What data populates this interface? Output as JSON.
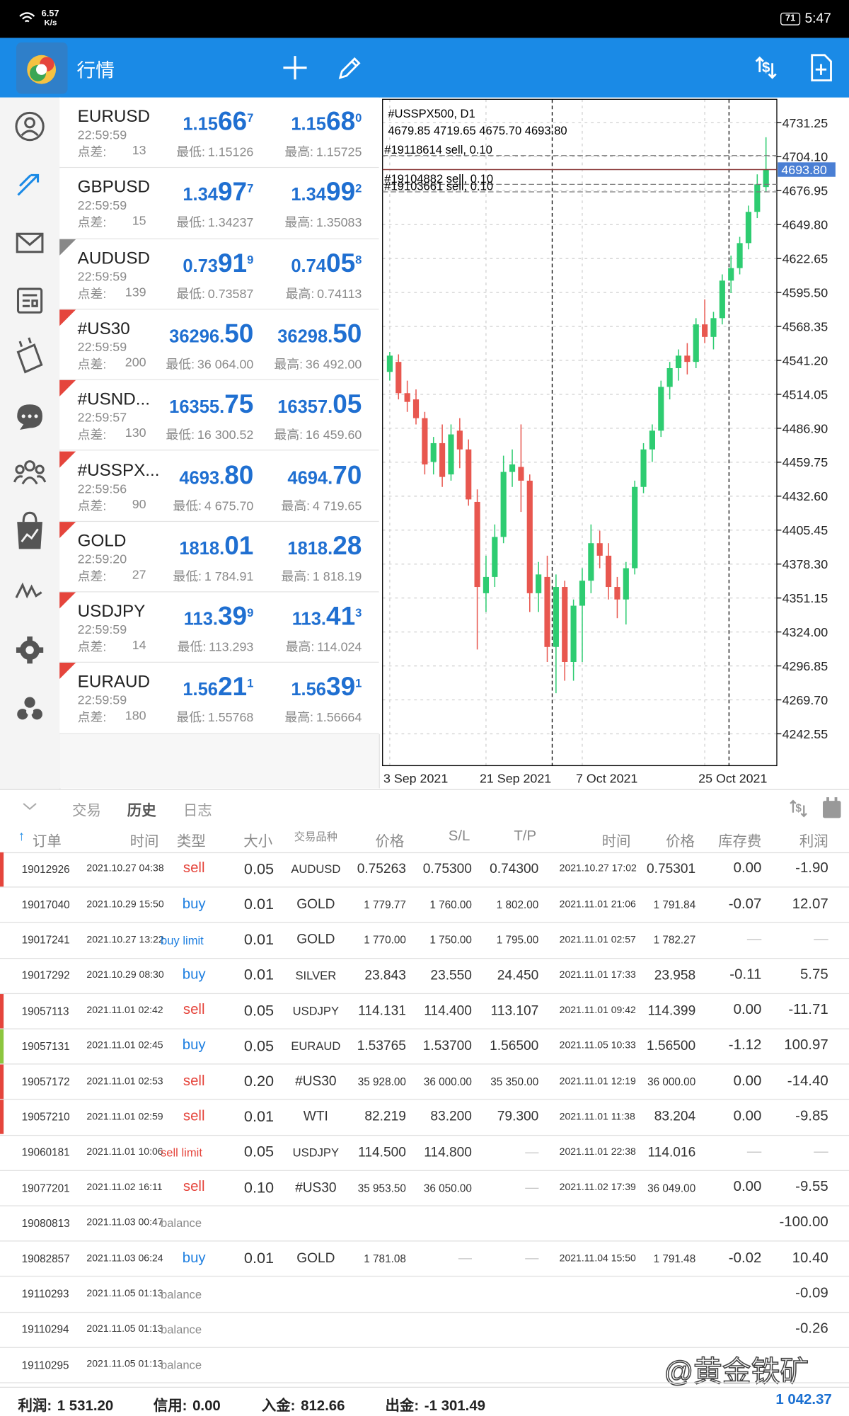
{
  "status_bar": {
    "speed": "6.57",
    "speed_unit": "K/s",
    "battery": "71",
    "time": "5:47"
  },
  "app_bar": {
    "title": "行情"
  },
  "quotes": {
    "rows": [
      {
        "symbol": "EURUSD",
        "time": "22:59:59",
        "spread_label": "点差:",
        "spread": 13,
        "bid": "1.15667",
        "ask": "1.15680",
        "low_label": "最低:",
        "low": "1.15126",
        "high_label": "最高:",
        "high": "1.15725",
        "flag": null
      },
      {
        "symbol": "GBPUSD",
        "time": "22:59:59",
        "spread_label": "点差:",
        "spread": 15,
        "bid": "1.34977",
        "ask": "1.34992",
        "low_label": "最低:",
        "low": "1.34237",
        "high_label": "最高:",
        "high": "1.35083",
        "flag": null
      },
      {
        "symbol": "AUDUSD",
        "time": "22:59:59",
        "spread_label": "点差:",
        "spread": 139,
        "bid": "0.73919",
        "ask": "0.74058",
        "low_label": "最低:",
        "low": "0.73587",
        "high_label": "最高:",
        "high": "0.74113",
        "flag": "#888888"
      },
      {
        "symbol": "#US30",
        "time": "22:59:59",
        "spread_label": "点差:",
        "spread": 200,
        "bid": "36296.50",
        "ask": "36298.50",
        "low_label": "最低:",
        "low": "36 064.00",
        "high_label": "最高:",
        "high": "36 492.00",
        "flag": "#e5453c"
      },
      {
        "symbol": "#USND...",
        "time": "22:59:57",
        "spread_label": "点差:",
        "spread": 130,
        "bid": "16355.75",
        "ask": "16357.05",
        "low_label": "最低:",
        "low": "16 300.52",
        "high_label": "最高:",
        "high": "16 459.60",
        "flag": "#e5453c"
      },
      {
        "symbol": "#USSPX...",
        "time": "22:59:56",
        "spread_label": "点差:",
        "spread": 90,
        "bid": "4693.80",
        "ask": "4694.70",
        "low_label": "最低:",
        "low": "4 675.70",
        "high_label": "最高:",
        "high": "4 719.65",
        "flag": "#e5453c"
      },
      {
        "symbol": "GOLD",
        "time": "22:59:20",
        "spread_label": "点差:",
        "spread": 27,
        "bid": "1818.01",
        "ask": "1818.28",
        "low_label": "最低:",
        "low": "1 784.91",
        "high_label": "最高:",
        "high": "1 818.19",
        "flag": "#e5453c"
      },
      {
        "symbol": "USDJPY",
        "time": "22:59:59",
        "spread_label": "点差:",
        "spread": 14,
        "bid": "113.399",
        "ask": "113.413",
        "low_label": "最低:",
        "low": "113.293",
        "high_label": "最高:",
        "high": "114.024",
        "flag": "#e5453c"
      },
      {
        "symbol": "EURAUD",
        "time": "22:59:59",
        "spread_label": "点差:",
        "spread": 180,
        "bid": "1.56211",
        "ask": "1.56391",
        "low_label": "最低:",
        "low": "1.55768",
        "high_label": "最高:",
        "high": "1.56664",
        "flag": "#e5453c"
      }
    ]
  },
  "chart_data": {
    "type": "candlestick",
    "title": "#USSPX500, D1",
    "ohlc_text": "4679.85 4719.65 4675.70 4693.80",
    "categories": [
      "3 Sep 2021",
      null,
      null,
      null,
      null,
      null,
      null,
      null,
      null,
      null,
      null,
      "21 Sep 2021",
      null,
      null,
      null,
      null,
      null,
      null,
      null,
      null,
      null,
      null,
      "7 Oct 2021",
      null,
      null,
      null,
      null,
      null,
      null,
      null,
      null,
      null,
      null,
      null,
      null,
      null,
      "25 Oct 2021",
      null,
      null,
      null,
      null,
      null,
      null,
      null
    ],
    "open": [
      4532,
      4540,
      4515,
      4510,
      4495,
      4460,
      4475,
      4450,
      4485,
      4470,
      4428,
      4355,
      4368,
      4400,
      4452,
      4456,
      4445,
      4355,
      4368,
      4312,
      4360,
      4300,
      4345,
      4365,
      4395,
      4385,
      4360,
      4350,
      4375,
      4440,
      4470,
      4485,
      4520,
      4535,
      4545,
      4540,
      4570,
      4560,
      4575,
      4605,
      4615,
      4635,
      4660,
      4679.85
    ],
    "high": [
      4548,
      4546,
      4525,
      4518,
      4500,
      4480,
      4490,
      4490,
      4495,
      4478,
      4438,
      4385,
      4410,
      4465,
      4470,
      4490,
      4450,
      4380,
      4385,
      4370,
      4365,
      4350,
      4375,
      4410,
      4405,
      4395,
      4368,
      4380,
      4445,
      4475,
      4490,
      4525,
      4540,
      4550,
      4555,
      4575,
      4590,
      4580,
      4610,
      4625,
      4640,
      4665,
      4690,
      4719.65
    ],
    "low": [
      4525,
      4510,
      4500,
      4490,
      4450,
      4450,
      4440,
      4445,
      4455,
      4425,
      4310,
      4340,
      4360,
      4395,
      4440,
      4420,
      4340,
      4340,
      4300,
      4275,
      4285,
      4285,
      4300,
      4355,
      4375,
      4350,
      4335,
      4330,
      4370,
      4435,
      4460,
      4480,
      4510,
      4525,
      4530,
      4535,
      4555,
      4550,
      4570,
      4595,
      4610,
      4630,
      4655,
      4675.7
    ],
    "close": [
      4545,
      4515,
      4508,
      4495,
      4458,
      4475,
      4448,
      4482,
      4470,
      4430,
      4360,
      4368,
      4400,
      4452,
      4458,
      4445,
      4355,
      4370,
      4312,
      4360,
      4300,
      4345,
      4365,
      4395,
      4385,
      4360,
      4350,
      4375,
      4440,
      4470,
      4485,
      4520,
      4535,
      4545,
      4540,
      4570,
      4560,
      4575,
      4605,
      4615,
      4635,
      4660,
      4682,
      4693.8
    ],
    "up_color": "#2ecc71",
    "down_color": "#e8574f",
    "ylim": [
      4217.1,
      4750.0
    ],
    "yticks": [
      4731.25,
      {
        "value": 4704.1,
        "label": "4704.10"
      },
      4676.95,
      {
        "value": 4649.8,
        "label": "4649.80"
      },
      4622.65,
      {
        "value": 4595.5,
        "label": "4595.50"
      },
      4568.35,
      {
        "value": 4541.2,
        "label": "4541.20"
      },
      4514.05,
      {
        "value": 4486.9,
        "label": "4486.90"
      },
      4459.75,
      {
        "value": 4432.6,
        "label": "4432.60"
      },
      4405.45,
      {
        "value": 4378.3,
        "label": "4378.30"
      },
      4351.15,
      {
        "value": 4324,
        "label": "4324.00"
      },
      4296.85,
      {
        "value": 4269.7,
        "label": "4269.70"
      },
      4242.55
    ],
    "grid": true,
    "current_price": {
      "value": 4693.8,
      "label": "4693.80"
    },
    "order_lines": [
      {
        "label": "#19118614 sell, 0.10",
        "value": 4705
      },
      {
        "label": "#19104882 sell, 0.10",
        "value": 4682
      },
      {
        "label": "#19103661 sell, 0.10",
        "value": 4676
      }
    ]
  },
  "history": {
    "tabs": [
      "交易",
      "历史",
      "日志"
    ],
    "active_tab": 1,
    "columns": [
      "订单",
      "时间",
      "类型",
      "大小",
      "交易品种",
      "价格",
      "S/L",
      "T/P",
      "时间",
      "价格",
      "库存费",
      "利润"
    ],
    "type_colors": {
      "sell": "#e5453c",
      "buy": "#1e7fe0",
      "buy limit": "#1e7fe0",
      "sell limit": "#e5453c",
      "balance": "#8a8a8a"
    },
    "rows": [
      {
        "marker": "#e5453c",
        "cells": [
          "19012926",
          "2021.10.27 04:38",
          "sell",
          "0.05",
          "AUDUSD",
          "0.75263",
          "0.75300",
          "0.74300",
          "2021.10.27 17:02",
          "0.75301",
          "0.00",
          "-1.90"
        ]
      },
      {
        "marker": null,
        "cells": [
          "19017040",
          "2021.10.29 15:50",
          "buy",
          "0.01",
          "GOLD",
          "1 779.77",
          "1 760.00",
          "1 802.00",
          "2021.11.01 21:06",
          "1 791.84",
          "-0.07",
          "12.07"
        ]
      },
      {
        "marker": null,
        "cells": [
          "19017241",
          "2021.10.27 13:22",
          "buy limit",
          "0.01",
          "GOLD",
          "1 770.00",
          "1 750.00",
          "1 795.00",
          "2021.11.01 02:57",
          "1 782.27",
          "—",
          "—"
        ]
      },
      {
        "marker": null,
        "cells": [
          "19017292",
          "2021.10.29 08:30",
          "buy",
          "0.01",
          "SILVER",
          "23.843",
          "23.550",
          "24.450",
          "2021.11.01 17:33",
          "23.958",
          "-0.11",
          "5.75"
        ]
      },
      {
        "marker": "#e5453c",
        "cells": [
          "19057113",
          "2021.11.01 02:42",
          "sell",
          "0.05",
          "USDJPY",
          "114.131",
          "114.400",
          "113.107",
          "2021.11.01 09:42",
          "114.399",
          "0.00",
          "-11.71"
        ]
      },
      {
        "marker": "#8cc63f",
        "cells": [
          "19057131",
          "2021.11.01 02:45",
          "buy",
          "0.05",
          "EURAUD",
          "1.53765",
          "1.53700",
          "1.56500",
          "2021.11.05 10:33",
          "1.56500",
          "-1.12",
          "100.97"
        ]
      },
      {
        "marker": "#e5453c",
        "cells": [
          "19057172",
          "2021.11.01 02:53",
          "sell",
          "0.20",
          "#US30",
          "35 928.00",
          "36 000.00",
          "35 350.00",
          "2021.11.01 12:19",
          "36 000.00",
          "0.00",
          "-14.40"
        ]
      },
      {
        "marker": "#e5453c",
        "cells": [
          "19057210",
          "2021.11.01 02:59",
          "sell",
          "0.01",
          "WTI",
          "82.219",
          "83.200",
          "79.300",
          "2021.11.01 11:38",
          "83.204",
          "0.00",
          "-9.85"
        ]
      },
      {
        "marker": null,
        "cells": [
          "19060181",
          "2021.11.01 10:06",
          "sell limit",
          "0.05",
          "USDJPY",
          "114.500",
          "114.800",
          "—",
          "2021.11.01 22:38",
          "114.016",
          "—",
          "—"
        ]
      },
      {
        "marker": null,
        "cells": [
          "19077201",
          "2021.11.02 16:11",
          "sell",
          "0.10",
          "#US30",
          "35 953.50",
          "36 050.00",
          "—",
          "2021.11.02 17:39",
          "36 049.00",
          "0.00",
          "-9.55"
        ]
      },
      {
        "marker": null,
        "cells": [
          "19080813",
          "2021.11.03 00:47",
          "balance",
          null,
          null,
          null,
          null,
          null,
          null,
          null,
          null,
          "-100.00"
        ]
      },
      {
        "marker": null,
        "cells": [
          "19082857",
          "2021.11.03 06:24",
          "buy",
          "0.01",
          "GOLD",
          "1 781.08",
          "—",
          "—",
          "2021.11.04 15:50",
          "1 791.48",
          "-0.02",
          "10.40"
        ]
      },
      {
        "marker": null,
        "cells": [
          "19110293",
          "2021.11.05 01:13",
          "balance",
          null,
          null,
          null,
          null,
          null,
          null,
          null,
          null,
          "-0.09"
        ]
      },
      {
        "marker": null,
        "cells": [
          "19110294",
          "2021.11.05 01:13",
          "balance",
          null,
          null,
          null,
          null,
          null,
          null,
          null,
          null,
          "-0.26"
        ]
      },
      {
        "marker": null,
        "cells": [
          "19110295",
          "2021.11.05 01:13",
          "balance",
          null,
          null,
          null,
          null,
          null,
          null,
          null,
          null,
          null
        ]
      }
    ]
  },
  "summary": {
    "items": [
      {
        "label": "利润:",
        "value": "1 531.20"
      },
      {
        "label": "信用:",
        "value": "0.00"
      },
      {
        "label": "入金:",
        "value": "812.66"
      },
      {
        "label": "出金:",
        "value": "-1 301.49"
      }
    ],
    "balance": "1 042.37"
  },
  "watermark": "@黄金铁矿"
}
